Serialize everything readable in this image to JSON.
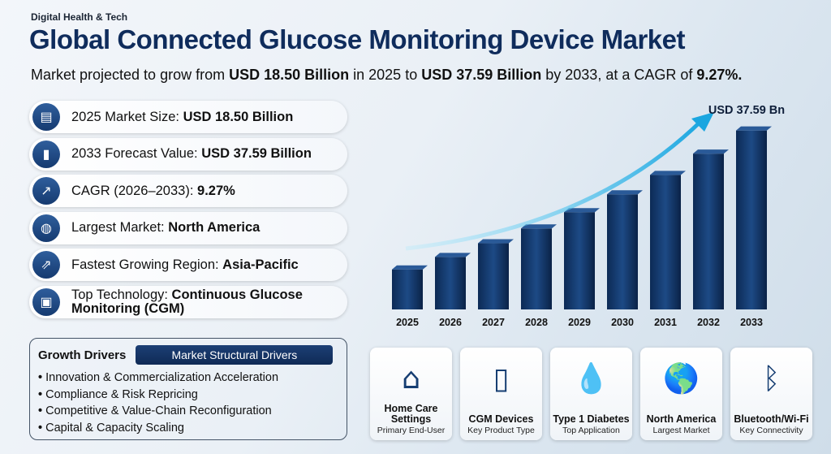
{
  "tag": "Digital Health & Tech",
  "title": "Global Connected Glucose Monitoring Device Market",
  "subtitle": {
    "p1": "Market projected to grow from ",
    "v1": "USD 18.50 Billion",
    "p2": " in 2025 to ",
    "v2": "USD 37.59 Billion",
    "p3": " by 2033, at a CAGR of ",
    "v3": "9.27%."
  },
  "stats": [
    {
      "icon": "briefcase-icon",
      "label": "2025 Market Size: ",
      "value": "USD 18.50 Billion"
    },
    {
      "icon": "bar-chart-icon",
      "label": "2033 Forecast Value: ",
      "value": "USD 37.59 Billion"
    },
    {
      "icon": "growth-chart-icon",
      "label": "CAGR (2026–2033): ",
      "value": "9.27%"
    },
    {
      "icon": "globe-icon",
      "label": "Largest Market: ",
      "value": "North America"
    },
    {
      "icon": "trend-up-icon",
      "label": "Fastest Growing Region: ",
      "value": "Asia-Pacific"
    },
    {
      "icon": "chip-icon",
      "label": "Top Technology: ",
      "value": "Continuous Glucose Monitoring (CGM)"
    }
  ],
  "drivers": {
    "heading": "Growth Drivers",
    "badge": "Market Structural Drivers",
    "items": [
      "Innovation & Commercialization Acceleration",
      "Compliance & Risk Repricing",
      "Competitive & Value-Chain Reconfiguration",
      "Capital & Capacity Scaling"
    ]
  },
  "chart_data": {
    "type": "bar",
    "categories": [
      "2025",
      "2026",
      "2027",
      "2028",
      "2029",
      "2030",
      "2031",
      "2032",
      "2033"
    ],
    "values": [
      18.5,
      20.21,
      22.09,
      24.13,
      26.37,
      28.82,
      31.49,
      34.41,
      37.59
    ],
    "annotation": "USD 37.59 Bn",
    "ylim": [
      13,
      38
    ],
    "grid": false,
    "bar_color": "#123565"
  },
  "cards": [
    {
      "icon": "home-care-icon",
      "glyph": "⌂",
      "title": "Home Care Settings",
      "sub": "Primary End-User"
    },
    {
      "icon": "glucose-meter-icon",
      "glyph": "▯",
      "title": "CGM Devices",
      "sub": "Key Product Type"
    },
    {
      "icon": "insulin-check-icon",
      "glyph": "💧",
      "title": "Type 1 Diabetes",
      "sub": "Top Application"
    },
    {
      "icon": "north-america-map-icon",
      "glyph": "🌎",
      "title": "North America",
      "sub": "Largest Market"
    },
    {
      "icon": "bluetooth-icon",
      "glyph": "ᛒ",
      "title": "Bluetooth/Wi-Fi",
      "sub": "Key Connectivity"
    }
  ]
}
